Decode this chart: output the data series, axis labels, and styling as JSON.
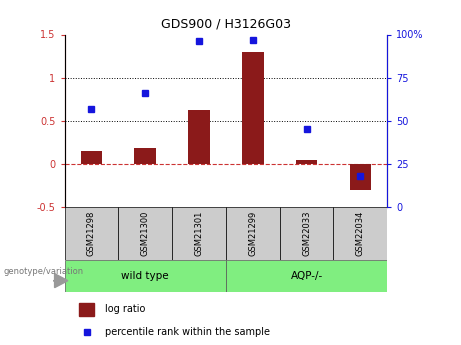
{
  "title": "GDS900 / H3126G03",
  "samples": [
    "GSM21298",
    "GSM21300",
    "GSM21301",
    "GSM21299",
    "GSM22033",
    "GSM22034"
  ],
  "log_ratio": [
    0.15,
    0.18,
    0.63,
    1.3,
    0.04,
    -0.3
  ],
  "percentile_rank_pct": [
    57,
    66,
    96,
    97,
    45,
    18
  ],
  "bar_color": "#8B1A1A",
  "dot_color": "#1515dd",
  "ylim_left": [
    -0.5,
    1.5
  ],
  "ylim_right": [
    0,
    100
  ],
  "left_yticks": [
    -0.5,
    0.0,
    0.5,
    1.0,
    1.5
  ],
  "left_yticklabels": [
    "-0.5",
    "0",
    "0.5",
    "1",
    "1.5"
  ],
  "right_yticks": [
    0,
    25,
    50,
    75,
    100
  ],
  "right_yticklabels": [
    "0",
    "25",
    "50",
    "75",
    "100%"
  ],
  "dotted_lines": [
    0.5,
    1.0
  ],
  "zero_line_color": "#CC3333",
  "axis_color_left": "#CC3333",
  "axis_color_right": "#1515dd",
  "background_color": "#ffffff",
  "label_box_color": "#cccccc",
  "group_color": "#80ee80",
  "genotype_label": "genotype/variation",
  "legend_log_ratio": "log ratio",
  "legend_percentile": "percentile rank within the sample",
  "wt_label": "wild type",
  "aqp_label": "AQP-/-"
}
